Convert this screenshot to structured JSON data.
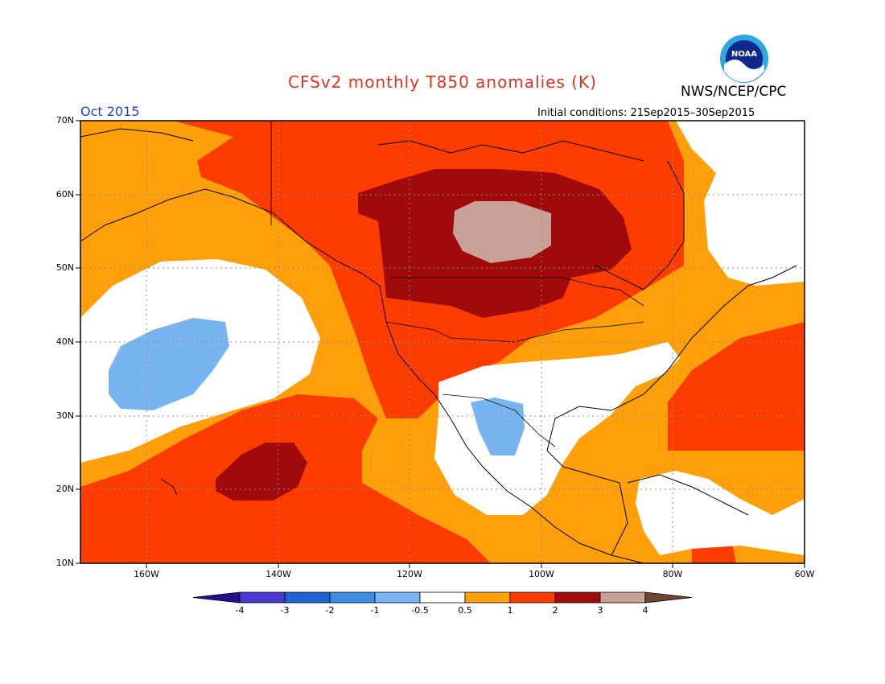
{
  "header": {
    "title": "CFSv2 monthly T850 anomalies (K)",
    "agency": "NWS/NCEP/CPC",
    "logo_text": "NOAA",
    "month": "Oct 2015",
    "initial_conditions": "Initial conditions: 21Sep2015–30Sep2015"
  },
  "axes": {
    "lat_labels": [
      "70N",
      "60N",
      "50N",
      "40N",
      "30N",
      "20N",
      "10N"
    ],
    "lon_labels": [
      "160W",
      "140W",
      "120W",
      "100W",
      "80W",
      "60W"
    ],
    "lat_range": [
      10,
      70
    ],
    "lon_range": [
      -170,
      -60
    ]
  },
  "colorbar": {
    "labels": [
      "-4",
      "-3",
      "-2",
      "-1",
      "-0.5",
      "0.5",
      "1",
      "2",
      "3",
      "4"
    ],
    "colors": [
      "#2a0f8c",
      "#4a3ad0",
      "#1e64d2",
      "#3c8ce6",
      "#78b4f0",
      "#ffffff",
      "#ffa00a",
      "#ff3c00",
      "#a00a0a",
      "#c8a096",
      "#6e4632"
    ]
  },
  "colors": {
    "neutral": "#ffffff",
    "warm_0_5_1": "#ffa00a",
    "warm_1_2": "#ff3c00",
    "warm_2_3": "#a00a0a",
    "warm_3_4": "#c8a096",
    "cool_0_5_1": "#78b4f0",
    "title": "#e0321e",
    "month": "#2040d0"
  }
}
